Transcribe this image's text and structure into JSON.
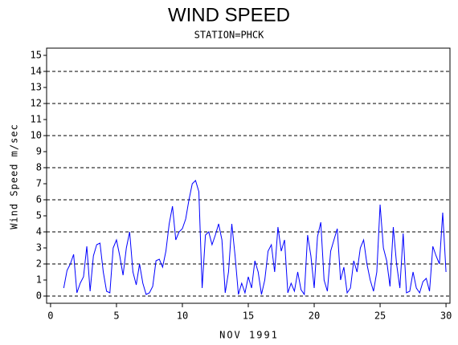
{
  "chart_data": {
    "type": "line",
    "title": "WIND SPEED",
    "subtitle": "STATION=PHCK",
    "x_label": "NOV 1991",
    "y_label": "Wind Speed m/sec",
    "color": "#0000ff",
    "xlim": [
      -0.3,
      30.3
    ],
    "xticks": [
      0,
      5,
      10,
      15,
      20,
      25,
      30
    ],
    "ylim": [
      -0.45,
      15.45
    ],
    "yticks": [
      0,
      1,
      2,
      3,
      4,
      5,
      6,
      7,
      8,
      9,
      10,
      11,
      12,
      13,
      14,
      15
    ],
    "grid": true,
    "x": [
      1,
      1.25,
      1.5,
      1.75,
      2,
      2.25,
      2.5,
      2.75,
      3,
      3.25,
      3.5,
      3.75,
      4,
      4.25,
      4.5,
      4.75,
      5,
      5.25,
      5.5,
      5.75,
      6,
      6.25,
      6.5,
      6.75,
      7,
      7.25,
      7.5,
      7.75,
      8,
      8.25,
      8.5,
      8.75,
      9,
      9.25,
      9.5,
      9.75,
      10,
      10.25,
      10.5,
      10.75,
      11,
      11.25,
      11.5,
      11.75,
      12,
      12.25,
      12.5,
      12.75,
      13,
      13.25,
      13.5,
      13.75,
      14,
      14.25,
      14.5,
      14.75,
      15,
      15.25,
      15.5,
      15.75,
      16,
      16.25,
      16.5,
      16.75,
      17,
      17.25,
      17.5,
      17.75,
      18,
      18.25,
      18.5,
      18.75,
      19,
      19.25,
      19.5,
      19.75,
      20,
      20.25,
      20.5,
      20.75,
      21,
      21.25,
      21.5,
      21.75,
      22,
      22.25,
      22.5,
      22.75,
      23,
      23.25,
      23.5,
      23.75,
      24,
      24.25,
      24.5,
      24.75,
      25,
      25.25,
      25.5,
      25.75,
      26,
      26.25,
      26.5,
      26.75,
      27,
      27.25,
      27.5,
      27.75,
      28,
      28.25,
      28.5,
      28.75,
      29,
      29.25,
      29.5,
      29.75,
      30
    ],
    "values": [
      0.5,
      1.6,
      2.0,
      2.6,
      0.2,
      0.8,
      1.2,
      3.1,
      0.3,
      2.5,
      3.2,
      3.3,
      1.5,
      0.3,
      0.2,
      3.0,
      3.5,
      2.5,
      1.3,
      3.0,
      4.0,
      1.5,
      0.7,
      2.0,
      0.8,
      0.1,
      0.2,
      0.6,
      2.2,
      2.3,
      1.8,
      2.8,
      4.5,
      5.6,
      3.5,
      4.0,
      4.2,
      4.8,
      6.0,
      7.0,
      7.2,
      6.5,
      0.5,
      3.8,
      4.0,
      3.2,
      3.8,
      4.5,
      3.5,
      0.2,
      1.5,
      4.5,
      2.5,
      0.1,
      0.8,
      0.2,
      1.2,
      0.5,
      2.2,
      1.5,
      0.1,
      1.0,
      2.8,
      3.2,
      1.5,
      4.3,
      2.8,
      3.5,
      0.2,
      0.8,
      0.3,
      1.5,
      0.4,
      0.1,
      3.8,
      2.5,
      0.5,
      3.7,
      4.6,
      1.0,
      0.3,
      2.8,
      3.5,
      4.2,
      1.0,
      1.8,
      0.2,
      0.5,
      2.2,
      1.5,
      3.0,
      3.5,
      2.0,
      1.0,
      0.3,
      1.5,
      5.7,
      3.0,
      2.2,
      0.6,
      4.3,
      2.0,
      0.5,
      3.9,
      0.2,
      0.3,
      1.5,
      0.5,
      0.2,
      0.9,
      1.1,
      0.3,
      3.1,
      2.5,
      2.0,
      5.2,
      1.5
    ]
  }
}
